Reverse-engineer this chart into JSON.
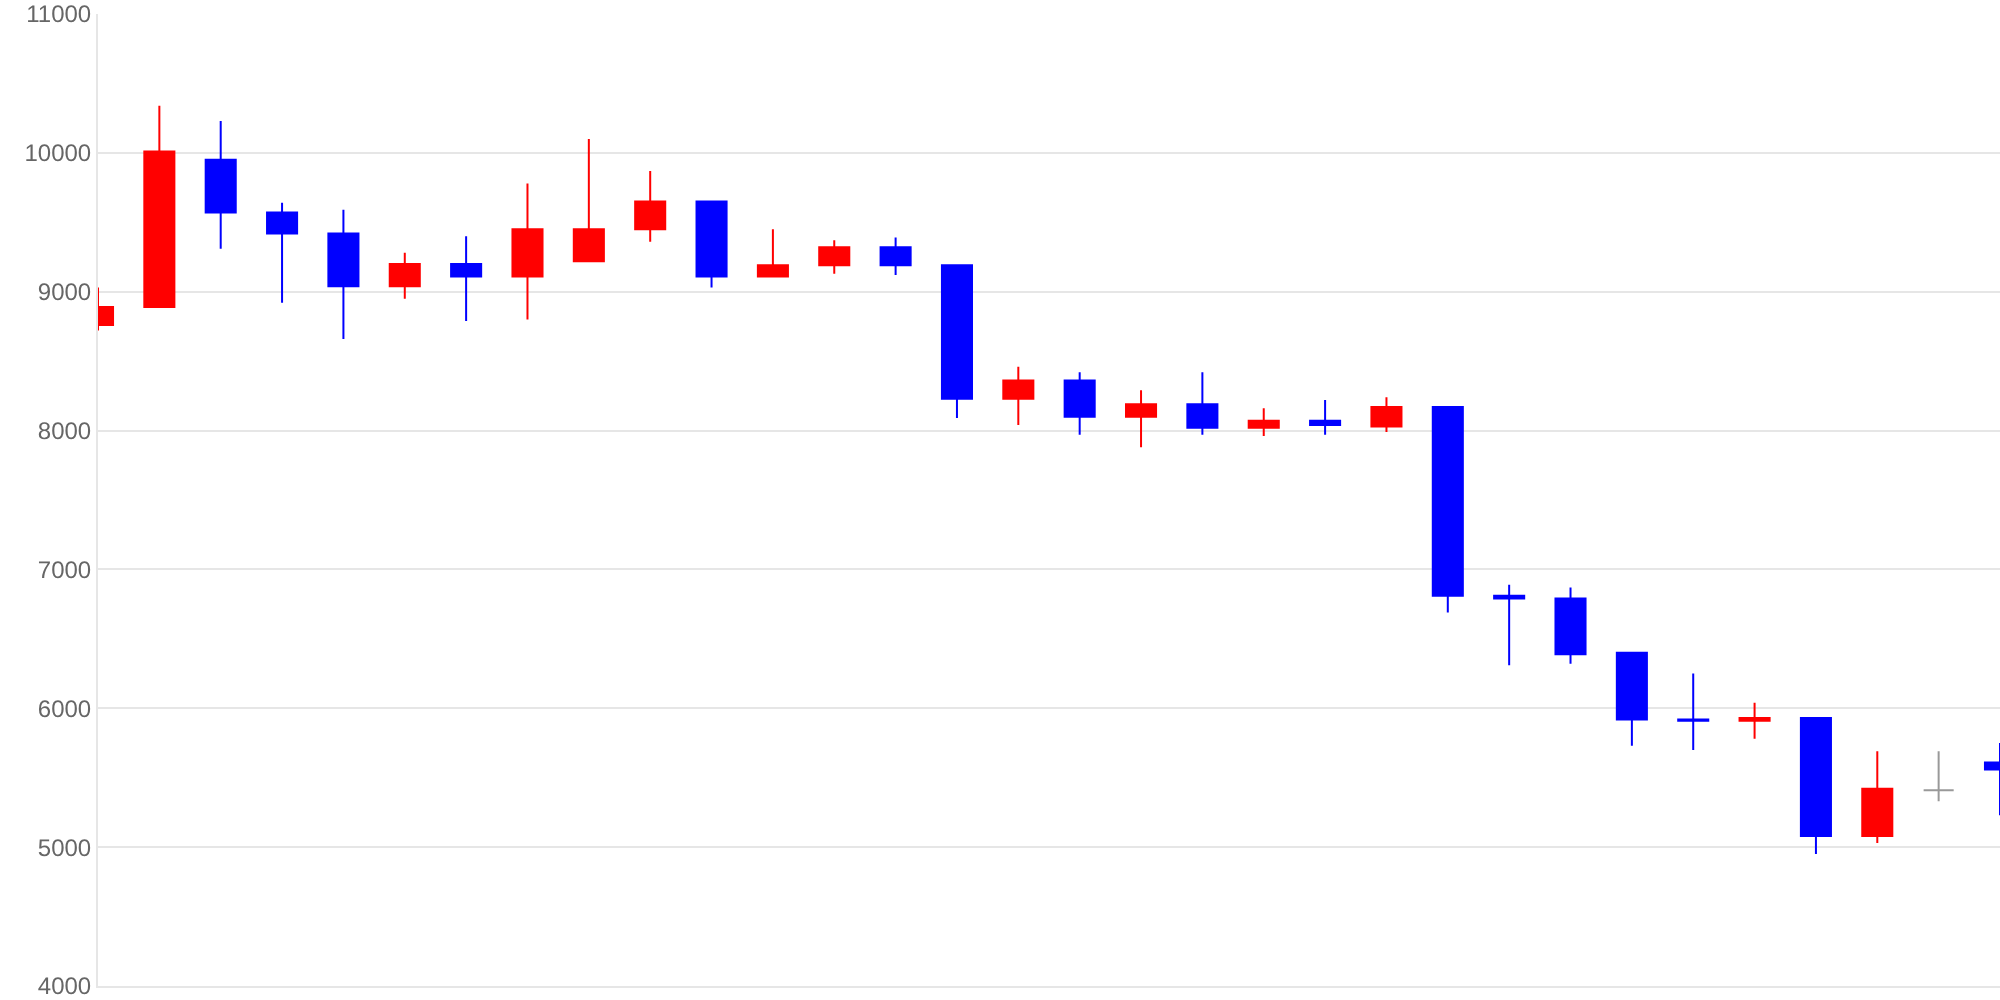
{
  "chart_data": {
    "type": "candlestick",
    "categories": [
      null,
      null,
      null,
      null,
      null,
      null,
      null,
      null,
      null,
      null,
      null,
      null,
      null,
      null,
      null,
      null,
      null,
      null,
      null,
      null,
      null,
      null,
      null,
      null,
      null,
      null,
      null,
      null,
      null,
      null,
      null,
      null
    ],
    "ohlc": [
      [
        8760,
        9030,
        8720,
        8890
      ],
      [
        8890,
        10340,
        8890,
        10010
      ],
      [
        9950,
        10230,
        9310,
        9570
      ],
      [
        9570,
        9640,
        8920,
        9420
      ],
      [
        9420,
        9590,
        8660,
        9040
      ],
      [
        9040,
        9280,
        8950,
        9200
      ],
      [
        9200,
        9400,
        8790,
        9110
      ],
      [
        9110,
        9780,
        8800,
        9450
      ],
      [
        9220,
        10100,
        9220,
        9450
      ],
      [
        9450,
        9870,
        9360,
        9650
      ],
      [
        9650,
        9650,
        9030,
        9110
      ],
      [
        9110,
        9450,
        9110,
        9190
      ],
      [
        9190,
        9370,
        9130,
        9320
      ],
      [
        9320,
        9390,
        9120,
        9190
      ],
      [
        9190,
        9190,
        8090,
        8230
      ],
      [
        8230,
        8460,
        8040,
        8360
      ],
      [
        8360,
        8420,
        7970,
        8100
      ],
      [
        8100,
        8290,
        7880,
        8190
      ],
      [
        8190,
        8420,
        7970,
        8020
      ],
      [
        8020,
        8160,
        7960,
        8070
      ],
      [
        8070,
        8220,
        7970,
        8040
      ],
      [
        8030,
        8240,
        7990,
        8170
      ],
      [
        8170,
        8170,
        6690,
        6810
      ],
      [
        6810,
        6890,
        6310,
        6790
      ],
      [
        6790,
        6870,
        6320,
        6390
      ],
      [
        6400,
        6400,
        5730,
        5920
      ],
      [
        5920,
        6250,
        5700,
        5910
      ],
      [
        5910,
        6040,
        5780,
        5930
      ],
      [
        5930,
        5930,
        4950,
        5080
      ],
      [
        5080,
        5690,
        5030,
        5420
      ],
      [
        5410,
        5690,
        5330,
        5410
      ],
      [
        5610,
        5750,
        5230,
        5560
      ]
    ],
    "colors": [
      "#ff0000",
      "#ff0000",
      "#0000ff",
      "#0000ff",
      "#0000ff",
      "#ff0000",
      "#0000ff",
      "#ff0000",
      "#ff0000",
      "#ff0000",
      "#0000ff",
      "#ff0000",
      "#ff0000",
      "#0000ff",
      "#0000ff",
      "#ff0000",
      "#0000ff",
      "#ff0000",
      "#0000ff",
      "#ff0000",
      "#0000ff",
      "#ff0000",
      "#0000ff",
      "#0000ff",
      "#0000ff",
      "#0000ff",
      "#0000ff",
      "#ff0000",
      "#0000ff",
      "#ff0000",
      "#999999",
      "#0000ff"
    ],
    "ylim": [
      4000,
      11000
    ],
    "yticks": [
      4000,
      5000,
      6000,
      7000,
      8000,
      9000,
      10000,
      11000
    ],
    "grid": "y",
    "tick_labels": "y",
    "legend": false
  }
}
